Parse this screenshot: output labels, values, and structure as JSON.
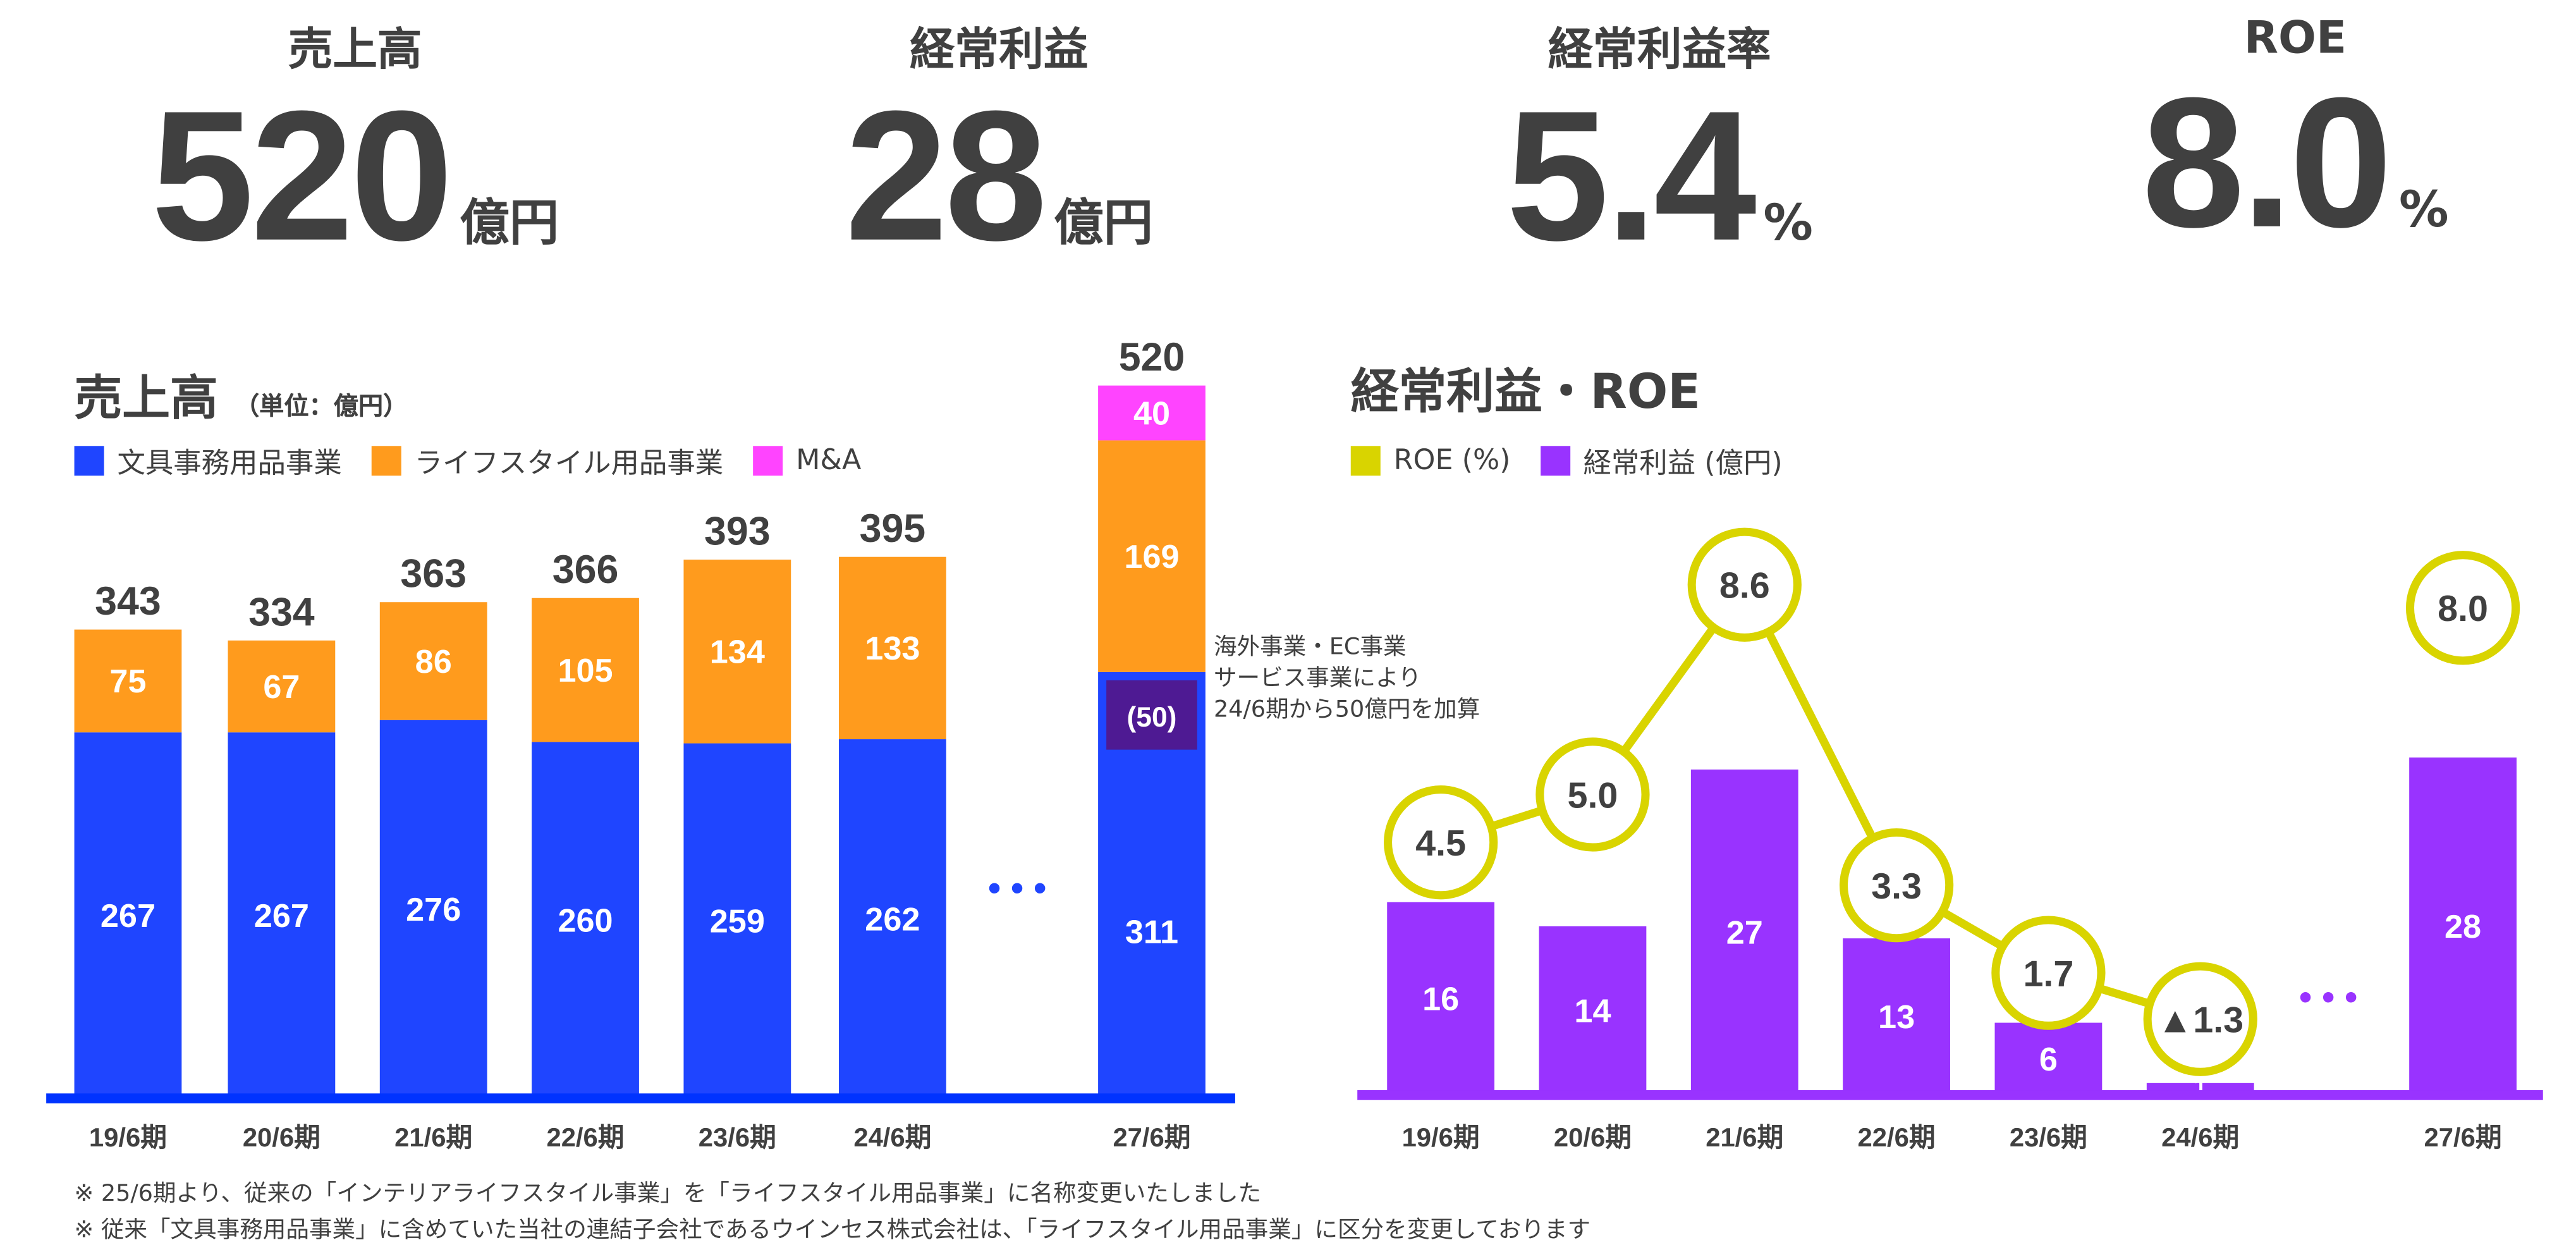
{
  "kpis": [
    {
      "label": "売上高",
      "value": "520",
      "unit": "億円"
    },
    {
      "label": "経常利益",
      "value": "28",
      "unit": "億円"
    },
    {
      "label": "経常利益率",
      "value": "5.4",
      "unit": "%"
    },
    {
      "label": "ROE",
      "value": "8.0",
      "unit": "%"
    }
  ],
  "colors": {
    "stationery": "#1f45ff",
    "lifestyle": "#ff9b1d",
    "ma": "#ff44ff",
    "highlight": "#4e1a93",
    "profit": "#9933ff",
    "roe": "#d9d400",
    "axis_left": "#0033ff",
    "text": "#404040"
  },
  "chart_data": [
    {
      "type": "bar",
      "stacked": true,
      "title": "売上高",
      "unit_label": "（単位：億円）",
      "categories": [
        "19/6期",
        "20/6期",
        "21/6期",
        "22/6期",
        "23/6期",
        "24/6期",
        "27/6期"
      ],
      "series": [
        {
          "name": "文具事務用品事業",
          "values": [
            267,
            267,
            276,
            260,
            259,
            262,
            311
          ]
        },
        {
          "name": "ライフスタイル用品事業",
          "values": [
            75,
            67,
            86,
            105,
            134,
            133,
            169
          ]
        },
        {
          "name": "M&A",
          "values": [
            null,
            null,
            null,
            null,
            null,
            null,
            40
          ]
        }
      ],
      "totals": [
        343,
        334,
        363,
        366,
        393,
        395,
        520
      ],
      "gap_marker": "• • •",
      "highlight_label": "(50)",
      "annotation": [
        "海外事業・EC事業",
        "サービス事業により",
        "24/6期から50億円を加算"
      ],
      "legend": "top-left"
    },
    {
      "type": "bar+line",
      "title": "経常利益・ROE",
      "categories": [
        "19/6期",
        "20/6期",
        "21/6期",
        "22/6期",
        "23/6期",
        "24/6期",
        "27/6期"
      ],
      "series": [
        {
          "name": "ROE (%)",
          "type": "line",
          "values": [
            4.5,
            5.0,
            8.6,
            3.3,
            1.7,
            -1.3,
            8.0
          ],
          "labels": [
            "4.5",
            "5.0",
            "8.6",
            "3.3",
            "1.7",
            "▲1.3",
            "8.0"
          ]
        },
        {
          "name": "経常利益 (億円)",
          "type": "bar",
          "values": [
            16,
            14,
            27,
            13,
            6,
            1,
            28
          ]
        }
      ],
      "gap_marker": "• • •",
      "legend": "top-left"
    }
  ],
  "notes": [
    "※ 25/6期より、従来の「インテリアライフスタイル事業」を「ライフスタイル用品事業」に名称変更いたしました",
    "※ 従来「文具事務用品事業」に含めていた当社の連結子会社であるウインセス株式会社は、「ライフスタイル用品事業」に区分を変更しております"
  ]
}
